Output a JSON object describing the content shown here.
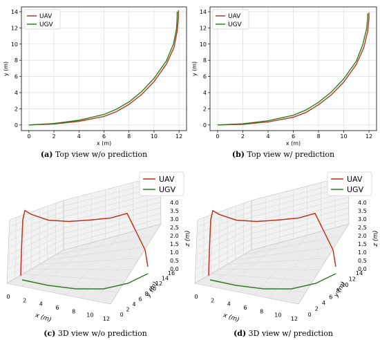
{
  "colors": {
    "uav": "#b5361c",
    "ugv": "#2e7d1f"
  },
  "chart_data": [
    {
      "type": "line",
      "caption_letter": "(a)",
      "caption_text": "Top view w/o prediction",
      "xlabel": "x (m)",
      "ylabel": "y (m)",
      "xlim": [
        -0.6,
        12.6
      ],
      "ylim": [
        -0.7,
        14.6
      ],
      "xticks": [
        "0",
        "2",
        "4",
        "6",
        "8",
        "10",
        "12"
      ],
      "yticks": [
        "0",
        "2",
        "4",
        "6",
        "8",
        "10",
        "12",
        "14"
      ],
      "grid": true,
      "legend": "top-left",
      "series": [
        {
          "name": "UAV",
          "x": [
            0,
            2,
            4,
            6,
            7,
            8,
            9,
            10,
            11,
            11.6,
            11.85,
            11.95,
            11.95
          ],
          "y": [
            0,
            0.12,
            0.45,
            1.05,
            1.65,
            2.55,
            3.75,
            5.35,
            7.55,
            9.6,
            11.6,
            13.2,
            14.2
          ]
        },
        {
          "name": "UGV",
          "x": [
            0,
            2,
            4,
            6,
            7,
            8,
            9,
            10,
            11,
            11.55,
            11.8,
            11.85,
            11.85
          ],
          "y": [
            0,
            0.18,
            0.58,
            1.3,
            1.95,
            2.85,
            4.1,
            5.75,
            7.95,
            10.0,
            11.9,
            13.3,
            14.0
          ]
        }
      ]
    },
    {
      "type": "line",
      "caption_letter": "(b)",
      "caption_text": "Top view w/ prediction",
      "xlabel": "x (m)",
      "ylabel": "y (m)",
      "xlim": [
        -0.6,
        12.6
      ],
      "ylim": [
        -0.7,
        14.6
      ],
      "xticks": [
        "0",
        "2",
        "4",
        "6",
        "8",
        "10",
        "12"
      ],
      "yticks": [
        "0",
        "2",
        "4",
        "6",
        "8",
        "10",
        "12",
        "14"
      ],
      "grid": true,
      "legend": "top-left",
      "series": [
        {
          "name": "UAV",
          "x": [
            0,
            2,
            4,
            6,
            7,
            8,
            9,
            10,
            11,
            11.6,
            11.9,
            12.0,
            12.0
          ],
          "y": [
            0,
            0.08,
            0.38,
            0.95,
            1.55,
            2.5,
            3.7,
            5.3,
            7.5,
            9.6,
            11.6,
            13.1,
            13.9
          ]
        },
        {
          "name": "UGV",
          "x": [
            0,
            2,
            4,
            6,
            7,
            8,
            9,
            10,
            11,
            11.5,
            11.8,
            11.9,
            11.9
          ],
          "y": [
            0,
            0.15,
            0.52,
            1.2,
            1.85,
            2.8,
            4.05,
            5.7,
            7.9,
            9.9,
            11.8,
            13.2,
            13.8
          ]
        }
      ]
    },
    {
      "type": "line",
      "caption_letter": "(c)",
      "caption_text": "3D view w/o prediction",
      "xlabel": "x (m)",
      "ylabel": "y (m)",
      "zlabel": "z (m)",
      "xticks": [
        "0",
        "2",
        "4",
        "6",
        "8",
        "10",
        "12"
      ],
      "yticks": [
        "0",
        "2",
        "4",
        "6",
        "8",
        "10",
        "12",
        "14",
        "16"
      ],
      "zticks": [
        "0.0",
        "0.5",
        "1.0",
        "1.5",
        "2.0",
        "2.5",
        "3.0",
        "3.5",
        "4.0"
      ],
      "grid": true,
      "legend": "top-right",
      "series": [
        {
          "name": "UAV",
          "z_profile": [
            0.3,
            1.5,
            3.4,
            3.6,
            3.35,
            3.1,
            3.15,
            3.2,
            3.15,
            3.5,
            2.8,
            1.6,
            0.4
          ]
        },
        {
          "name": "UGV",
          "z_profile": [
            0,
            0,
            0,
            0,
            0,
            0,
            0,
            0,
            0,
            0,
            0,
            0,
            0
          ]
        }
      ]
    },
    {
      "type": "line",
      "caption_letter": "(d)",
      "caption_text": "3D view w/ prediction",
      "xlabel": "x (m)",
      "ylabel": "y (m)",
      "zlabel": "z (m)",
      "xticks": [
        "0",
        "2",
        "4",
        "6",
        "8",
        "10",
        "12"
      ],
      "yticks": [
        "0",
        "2",
        "4",
        "6",
        "8",
        "10",
        "12",
        "14"
      ],
      "zticks": [
        "0.0",
        "0.5",
        "1.0",
        "1.5",
        "2.0",
        "2.5",
        "3.0",
        "3.5",
        "4.0"
      ],
      "grid": true,
      "legend": "top-right",
      "series": [
        {
          "name": "UAV",
          "z_profile": [
            0.3,
            1.5,
            3.4,
            3.55,
            3.3,
            3.1,
            3.15,
            3.2,
            3.15,
            3.5,
            2.8,
            1.6,
            0.4
          ]
        },
        {
          "name": "UGV",
          "z_profile": [
            0,
            0,
            0,
            0,
            0,
            0,
            0,
            0,
            0,
            0,
            0,
            0,
            0
          ]
        }
      ]
    }
  ]
}
